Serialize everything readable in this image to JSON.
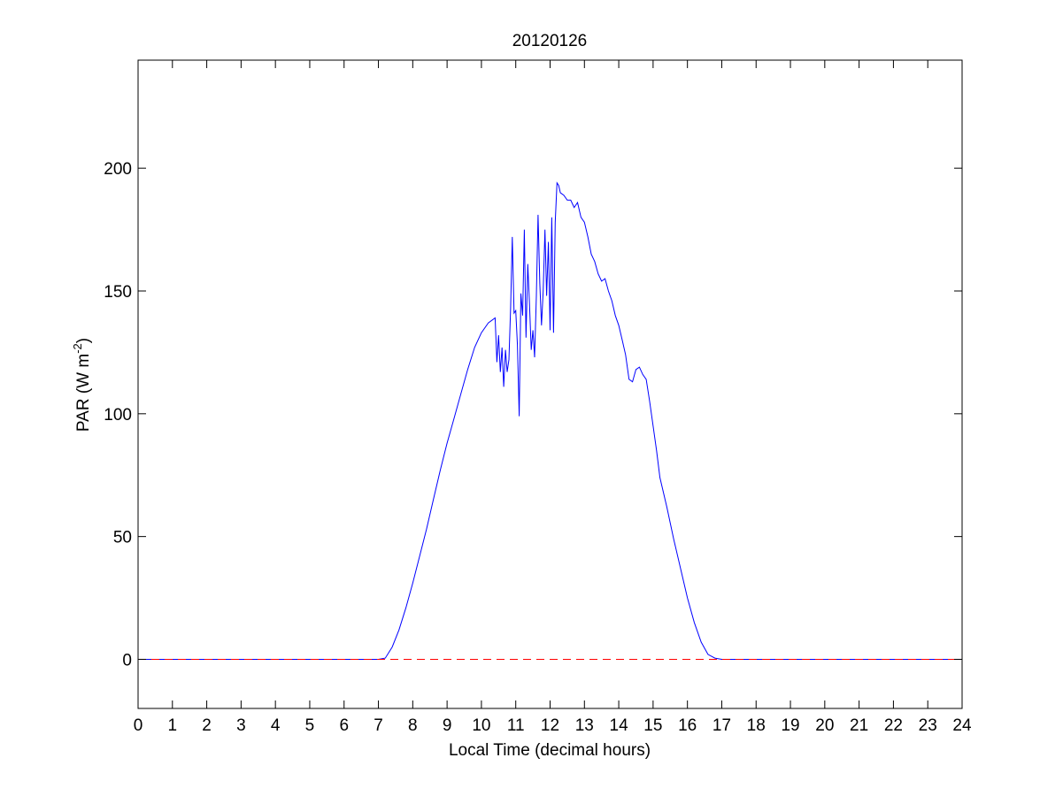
{
  "chart_data": {
    "type": "line",
    "title": "20120126",
    "xlabel": "Local Time (decimal hours)",
    "ylabel": {
      "main": "PAR (W m",
      "sup": "-2",
      "close": ")"
    },
    "xlim": [
      0,
      24
    ],
    "ylim": [
      -20,
      244
    ],
    "xticks": [
      0,
      1,
      2,
      3,
      4,
      5,
      6,
      7,
      8,
      9,
      10,
      11,
      12,
      13,
      14,
      15,
      16,
      17,
      18,
      19,
      20,
      21,
      22,
      23,
      24
    ],
    "yticks": [
      0,
      50,
      100,
      150,
      200
    ],
    "grid": false,
    "colors": {
      "series": "#0000ff",
      "zero_line": "#ff0000",
      "axes": "#000000"
    },
    "series": [
      {
        "style": "solid",
        "x": [
          0,
          7.0,
          7.2,
          7.4,
          7.6,
          7.8,
          8.0,
          8.2,
          8.4,
          8.6,
          8.8,
          9.0,
          9.2,
          9.4,
          9.6,
          9.8,
          10.0,
          10.2,
          10.4,
          10.45,
          10.5,
          10.55,
          10.6,
          10.65,
          10.7,
          10.75,
          10.8,
          10.85,
          10.9,
          10.95,
          11.0,
          11.05,
          11.1,
          11.15,
          11.2,
          11.25,
          11.3,
          11.35,
          11.4,
          11.45,
          11.5,
          11.55,
          11.6,
          11.65,
          11.7,
          11.75,
          11.8,
          11.85,
          11.9,
          11.95,
          12.0,
          12.05,
          12.1,
          12.15,
          12.2,
          12.25,
          12.3,
          12.4,
          12.5,
          12.6,
          12.7,
          12.8,
          12.9,
          13.0,
          13.1,
          13.2,
          13.3,
          13.4,
          13.5,
          13.6,
          13.7,
          13.8,
          13.9,
          14.0,
          14.1,
          14.2,
          14.3,
          14.4,
          14.5,
          14.6,
          14.7,
          14.8,
          14.9,
          15.0,
          15.1,
          15.2,
          15.4,
          15.6,
          15.8,
          16.0,
          16.2,
          16.4,
          16.6,
          16.8,
          17.0,
          17.2,
          17.4,
          17.6,
          17.8,
          24
        ],
        "y": [
          0,
          0,
          0.5,
          5,
          12,
          21,
          31,
          42,
          53,
          65,
          77,
          88,
          98,
          108,
          118,
          127,
          133,
          137,
          139,
          121,
          132,
          117,
          127,
          111,
          126,
          117,
          122,
          143,
          172,
          141,
          142,
          128,
          99,
          149,
          140,
          175,
          131,
          161,
          145,
          126,
          134,
          123,
          148,
          181,
          153,
          136,
          150,
          175,
          148,
          170,
          134,
          180,
          133,
          178,
          194,
          193,
          190,
          189,
          187,
          187,
          184,
          186,
          180,
          178,
          172,
          165,
          162,
          157,
          154,
          155,
          150,
          146,
          140,
          136,
          130,
          124,
          114,
          113,
          118,
          119,
          116,
          114,
          105,
          95,
          85,
          74,
          62,
          49,
          37,
          25,
          15,
          7,
          2,
          0.5,
          0,
          0,
          0,
          0,
          0,
          0
        ]
      },
      {
        "style": "dashed",
        "x": [
          0,
          24
        ],
        "y": [
          0,
          0
        ]
      }
    ]
  }
}
